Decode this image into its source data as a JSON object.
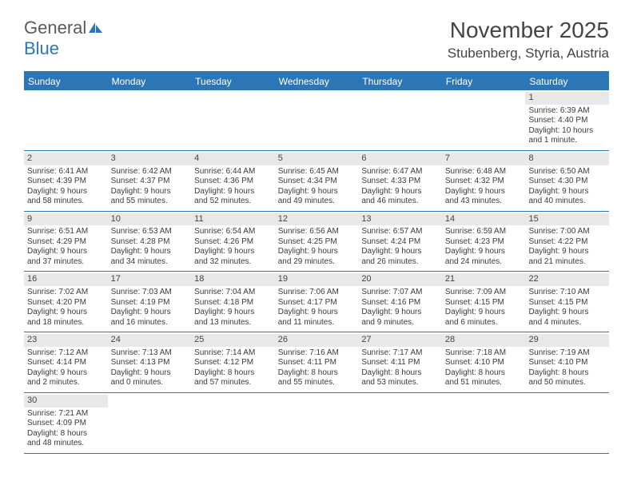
{
  "brand": {
    "part1": "General",
    "part2": "Blue"
  },
  "header": {
    "title": "November 2025",
    "location": "Stubenberg, Styria, Austria"
  },
  "colors": {
    "accent": "#2d76b5",
    "day_header_bg": "#e8e8e8",
    "text": "#3a3a3a",
    "background": "#ffffff"
  },
  "days_of_week": [
    "Sunday",
    "Monday",
    "Tuesday",
    "Wednesday",
    "Thursday",
    "Friday",
    "Saturday"
  ],
  "weeks": [
    [
      {
        "blank": true
      },
      {
        "blank": true
      },
      {
        "blank": true
      },
      {
        "blank": true
      },
      {
        "blank": true
      },
      {
        "blank": true
      },
      {
        "day": "1",
        "sunrise": "Sunrise: 6:39 AM",
        "sunset": "Sunset: 4:40 PM",
        "dl1": "Daylight: 10 hours",
        "dl2": "and 1 minute."
      }
    ],
    [
      {
        "day": "2",
        "sunrise": "Sunrise: 6:41 AM",
        "sunset": "Sunset: 4:39 PM",
        "dl1": "Daylight: 9 hours",
        "dl2": "and 58 minutes."
      },
      {
        "day": "3",
        "sunrise": "Sunrise: 6:42 AM",
        "sunset": "Sunset: 4:37 PM",
        "dl1": "Daylight: 9 hours",
        "dl2": "and 55 minutes."
      },
      {
        "day": "4",
        "sunrise": "Sunrise: 6:44 AM",
        "sunset": "Sunset: 4:36 PM",
        "dl1": "Daylight: 9 hours",
        "dl2": "and 52 minutes."
      },
      {
        "day": "5",
        "sunrise": "Sunrise: 6:45 AM",
        "sunset": "Sunset: 4:34 PM",
        "dl1": "Daylight: 9 hours",
        "dl2": "and 49 minutes."
      },
      {
        "day": "6",
        "sunrise": "Sunrise: 6:47 AM",
        "sunset": "Sunset: 4:33 PM",
        "dl1": "Daylight: 9 hours",
        "dl2": "and 46 minutes."
      },
      {
        "day": "7",
        "sunrise": "Sunrise: 6:48 AM",
        "sunset": "Sunset: 4:32 PM",
        "dl1": "Daylight: 9 hours",
        "dl2": "and 43 minutes."
      },
      {
        "day": "8",
        "sunrise": "Sunrise: 6:50 AM",
        "sunset": "Sunset: 4:30 PM",
        "dl1": "Daylight: 9 hours",
        "dl2": "and 40 minutes."
      }
    ],
    [
      {
        "day": "9",
        "sunrise": "Sunrise: 6:51 AM",
        "sunset": "Sunset: 4:29 PM",
        "dl1": "Daylight: 9 hours",
        "dl2": "and 37 minutes."
      },
      {
        "day": "10",
        "sunrise": "Sunrise: 6:53 AM",
        "sunset": "Sunset: 4:28 PM",
        "dl1": "Daylight: 9 hours",
        "dl2": "and 34 minutes."
      },
      {
        "day": "11",
        "sunrise": "Sunrise: 6:54 AM",
        "sunset": "Sunset: 4:26 PM",
        "dl1": "Daylight: 9 hours",
        "dl2": "and 32 minutes."
      },
      {
        "day": "12",
        "sunrise": "Sunrise: 6:56 AM",
        "sunset": "Sunset: 4:25 PM",
        "dl1": "Daylight: 9 hours",
        "dl2": "and 29 minutes."
      },
      {
        "day": "13",
        "sunrise": "Sunrise: 6:57 AM",
        "sunset": "Sunset: 4:24 PM",
        "dl1": "Daylight: 9 hours",
        "dl2": "and 26 minutes."
      },
      {
        "day": "14",
        "sunrise": "Sunrise: 6:59 AM",
        "sunset": "Sunset: 4:23 PM",
        "dl1": "Daylight: 9 hours",
        "dl2": "and 24 minutes."
      },
      {
        "day": "15",
        "sunrise": "Sunrise: 7:00 AM",
        "sunset": "Sunset: 4:22 PM",
        "dl1": "Daylight: 9 hours",
        "dl2": "and 21 minutes."
      }
    ],
    [
      {
        "day": "16",
        "sunrise": "Sunrise: 7:02 AM",
        "sunset": "Sunset: 4:20 PM",
        "dl1": "Daylight: 9 hours",
        "dl2": "and 18 minutes."
      },
      {
        "day": "17",
        "sunrise": "Sunrise: 7:03 AM",
        "sunset": "Sunset: 4:19 PM",
        "dl1": "Daylight: 9 hours",
        "dl2": "and 16 minutes."
      },
      {
        "day": "18",
        "sunrise": "Sunrise: 7:04 AM",
        "sunset": "Sunset: 4:18 PM",
        "dl1": "Daylight: 9 hours",
        "dl2": "and 13 minutes."
      },
      {
        "day": "19",
        "sunrise": "Sunrise: 7:06 AM",
        "sunset": "Sunset: 4:17 PM",
        "dl1": "Daylight: 9 hours",
        "dl2": "and 11 minutes."
      },
      {
        "day": "20",
        "sunrise": "Sunrise: 7:07 AM",
        "sunset": "Sunset: 4:16 PM",
        "dl1": "Daylight: 9 hours",
        "dl2": "and 9 minutes."
      },
      {
        "day": "21",
        "sunrise": "Sunrise: 7:09 AM",
        "sunset": "Sunset: 4:15 PM",
        "dl1": "Daylight: 9 hours",
        "dl2": "and 6 minutes."
      },
      {
        "day": "22",
        "sunrise": "Sunrise: 7:10 AM",
        "sunset": "Sunset: 4:15 PM",
        "dl1": "Daylight: 9 hours",
        "dl2": "and 4 minutes."
      }
    ],
    [
      {
        "day": "23",
        "sunrise": "Sunrise: 7:12 AM",
        "sunset": "Sunset: 4:14 PM",
        "dl1": "Daylight: 9 hours",
        "dl2": "and 2 minutes."
      },
      {
        "day": "24",
        "sunrise": "Sunrise: 7:13 AM",
        "sunset": "Sunset: 4:13 PM",
        "dl1": "Daylight: 9 hours",
        "dl2": "and 0 minutes."
      },
      {
        "day": "25",
        "sunrise": "Sunrise: 7:14 AM",
        "sunset": "Sunset: 4:12 PM",
        "dl1": "Daylight: 8 hours",
        "dl2": "and 57 minutes."
      },
      {
        "day": "26",
        "sunrise": "Sunrise: 7:16 AM",
        "sunset": "Sunset: 4:11 PM",
        "dl1": "Daylight: 8 hours",
        "dl2": "and 55 minutes."
      },
      {
        "day": "27",
        "sunrise": "Sunrise: 7:17 AM",
        "sunset": "Sunset: 4:11 PM",
        "dl1": "Daylight: 8 hours",
        "dl2": "and 53 minutes."
      },
      {
        "day": "28",
        "sunrise": "Sunrise: 7:18 AM",
        "sunset": "Sunset: 4:10 PM",
        "dl1": "Daylight: 8 hours",
        "dl2": "and 51 minutes."
      },
      {
        "day": "29",
        "sunrise": "Sunrise: 7:19 AM",
        "sunset": "Sunset: 4:10 PM",
        "dl1": "Daylight: 8 hours",
        "dl2": "and 50 minutes."
      }
    ],
    [
      {
        "day": "30",
        "sunrise": "Sunrise: 7:21 AM",
        "sunset": "Sunset: 4:09 PM",
        "dl1": "Daylight: 8 hours",
        "dl2": "and 48 minutes."
      },
      {
        "blank": true
      },
      {
        "blank": true
      },
      {
        "blank": true
      },
      {
        "blank": true
      },
      {
        "blank": true
      },
      {
        "blank": true
      }
    ]
  ]
}
